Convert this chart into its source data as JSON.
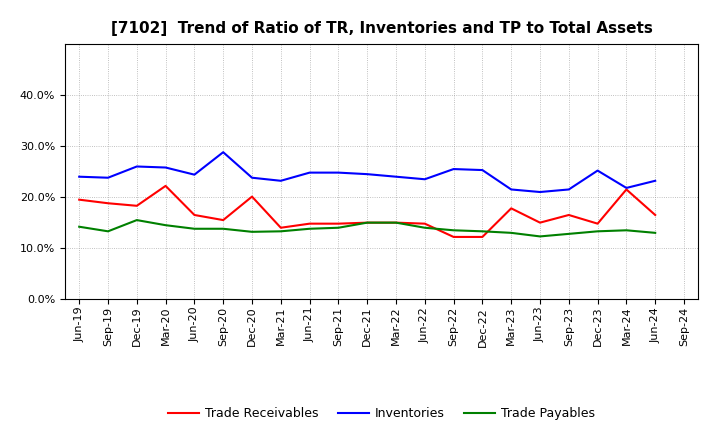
{
  "title": "[7102]  Trend of Ratio of TR, Inventories and TP to Total Assets",
  "x_labels": [
    "Jun-19",
    "Sep-19",
    "Dec-19",
    "Mar-20",
    "Jun-20",
    "Sep-20",
    "Dec-20",
    "Mar-21",
    "Jun-21",
    "Sep-21",
    "Dec-21",
    "Mar-22",
    "Jun-22",
    "Sep-22",
    "Dec-22",
    "Mar-23",
    "Jun-23",
    "Sep-23",
    "Dec-23",
    "Mar-24",
    "Jun-24",
    "Sep-24"
  ],
  "trade_receivables": [
    0.195,
    0.188,
    0.183,
    0.222,
    0.165,
    0.155,
    0.201,
    0.14,
    0.148,
    0.148,
    0.15,
    0.15,
    0.148,
    0.122,
    0.122,
    0.178,
    0.15,
    0.165,
    0.148,
    0.215,
    0.165,
    null
  ],
  "inventories": [
    0.24,
    0.238,
    0.26,
    0.258,
    0.244,
    0.288,
    0.238,
    0.232,
    0.248,
    0.248,
    0.245,
    0.24,
    0.235,
    0.255,
    0.253,
    0.215,
    0.21,
    0.215,
    0.252,
    0.218,
    0.232,
    null
  ],
  "trade_payables": [
    0.142,
    0.133,
    0.155,
    0.145,
    0.138,
    0.138,
    0.132,
    0.133,
    0.138,
    0.14,
    0.15,
    0.15,
    0.14,
    0.135,
    0.133,
    0.13,
    0.123,
    0.128,
    0.133,
    0.135,
    0.13,
    null
  ],
  "colors": {
    "trade_receivables": "#ff0000",
    "inventories": "#0000ff",
    "trade_payables": "#008000"
  },
  "ylim": [
    0.0,
    0.5
  ],
  "yticks": [
    0.0,
    0.1,
    0.2,
    0.3,
    0.4
  ],
  "background_color": "#ffffff",
  "grid_color": "#999999",
  "title_fontsize": 11,
  "tick_fontsize": 8,
  "legend_fontsize": 9,
  "linewidth": 1.5
}
